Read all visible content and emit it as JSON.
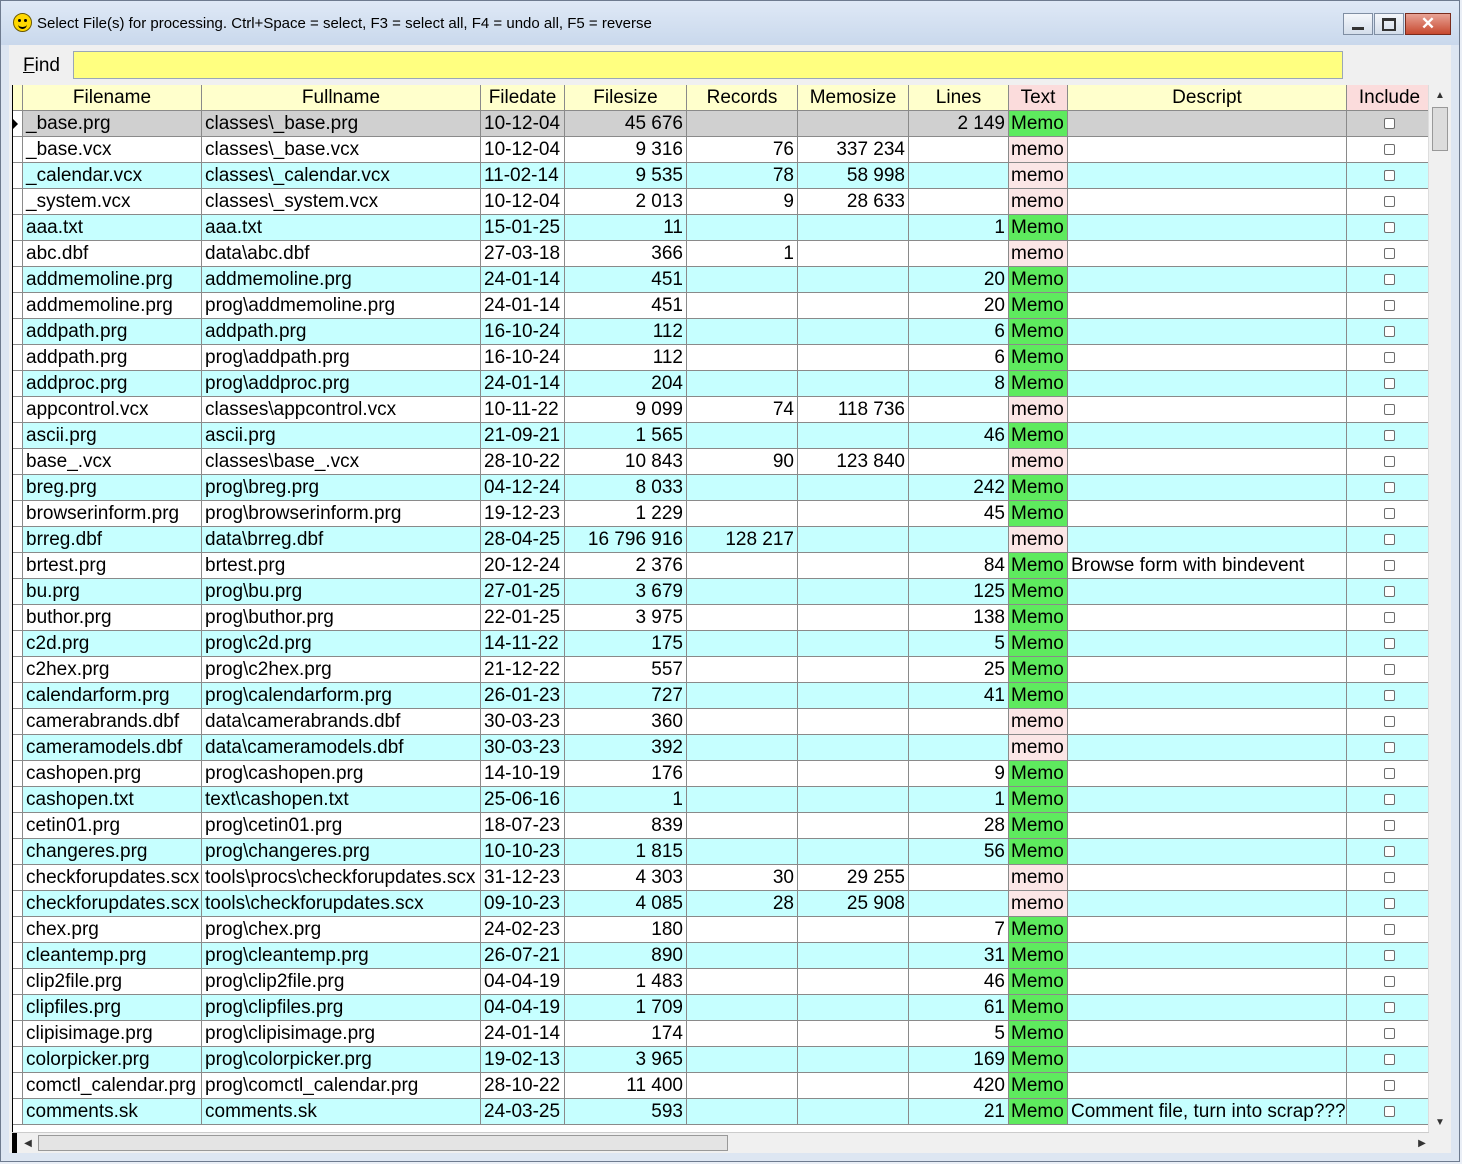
{
  "window": {
    "title": "Select File(s) for processing. Ctrl+Space = select, F3 = select all, F4 = undo all, F5 = reverse"
  },
  "find": {
    "label_prefix": "F",
    "label_rest": "ind",
    "value": ""
  },
  "grid": {
    "columns": [
      "Filename",
      "Fullname",
      "Filedate",
      "Filesize",
      "Records",
      "Memosize",
      "Lines",
      "Text",
      "Descript",
      "Include"
    ],
    "rows": [
      {
        "filename": "_base.prg",
        "fullname": "classes\\_base.prg",
        "filedate": "10-12-04",
        "filesize": "45 676",
        "records": "",
        "memosize": "",
        "lines": "2 149",
        "text": "Memo",
        "descript": "",
        "include": false
      },
      {
        "filename": "_base.vcx",
        "fullname": "classes\\_base.vcx",
        "filedate": "10-12-04",
        "filesize": "9 316",
        "records": "76",
        "memosize": "337 234",
        "lines": "",
        "text": "memo",
        "descript": "",
        "include": false
      },
      {
        "filename": "_calendar.vcx",
        "fullname": "classes\\_calendar.vcx",
        "filedate": "11-02-14",
        "filesize": "9 535",
        "records": "78",
        "memosize": "58 998",
        "lines": "",
        "text": "memo",
        "descript": "",
        "include": false
      },
      {
        "filename": "_system.vcx",
        "fullname": "classes\\_system.vcx",
        "filedate": "10-12-04",
        "filesize": "2 013",
        "records": "9",
        "memosize": "28 633",
        "lines": "",
        "text": "memo",
        "descript": "",
        "include": false
      },
      {
        "filename": "aaa.txt",
        "fullname": "aaa.txt",
        "filedate": "15-01-25",
        "filesize": "11",
        "records": "",
        "memosize": "",
        "lines": "1",
        "text": "Memo",
        "descript": "",
        "include": false
      },
      {
        "filename": "abc.dbf",
        "fullname": "data\\abc.dbf",
        "filedate": "27-03-18",
        "filesize": "366",
        "records": "1",
        "memosize": "",
        "lines": "",
        "text": "memo",
        "descript": "",
        "include": false
      },
      {
        "filename": "addmemoline.prg",
        "fullname": "addmemoline.prg",
        "filedate": "24-01-14",
        "filesize": "451",
        "records": "",
        "memosize": "",
        "lines": "20",
        "text": "Memo",
        "descript": "",
        "include": false
      },
      {
        "filename": "addmemoline.prg",
        "fullname": "prog\\addmemoline.prg",
        "filedate": "24-01-14",
        "filesize": "451",
        "records": "",
        "memosize": "",
        "lines": "20",
        "text": "Memo",
        "descript": "",
        "include": false
      },
      {
        "filename": "addpath.prg",
        "fullname": "addpath.prg",
        "filedate": "16-10-24",
        "filesize": "112",
        "records": "",
        "memosize": "",
        "lines": "6",
        "text": "Memo",
        "descript": "",
        "include": false
      },
      {
        "filename": "addpath.prg",
        "fullname": "prog\\addpath.prg",
        "filedate": "16-10-24",
        "filesize": "112",
        "records": "",
        "memosize": "",
        "lines": "6",
        "text": "Memo",
        "descript": "",
        "include": false
      },
      {
        "filename": "addproc.prg",
        "fullname": "prog\\addproc.prg",
        "filedate": "24-01-14",
        "filesize": "204",
        "records": "",
        "memosize": "",
        "lines": "8",
        "text": "Memo",
        "descript": "",
        "include": false
      },
      {
        "filename": "appcontrol.vcx",
        "fullname": "classes\\appcontrol.vcx",
        "filedate": "10-11-22",
        "filesize": "9 099",
        "records": "74",
        "memosize": "118 736",
        "lines": "",
        "text": "memo",
        "descript": "",
        "include": false
      },
      {
        "filename": "ascii.prg",
        "fullname": "ascii.prg",
        "filedate": "21-09-21",
        "filesize": "1 565",
        "records": "",
        "memosize": "",
        "lines": "46",
        "text": "Memo",
        "descript": "",
        "include": false
      },
      {
        "filename": "base_.vcx",
        "fullname": "classes\\base_.vcx",
        "filedate": "28-10-22",
        "filesize": "10 843",
        "records": "90",
        "memosize": "123 840",
        "lines": "",
        "text": "memo",
        "descript": "",
        "include": false
      },
      {
        "filename": "breg.prg",
        "fullname": "prog\\breg.prg",
        "filedate": "04-12-24",
        "filesize": "8 033",
        "records": "",
        "memosize": "",
        "lines": "242",
        "text": "Memo",
        "descript": "",
        "include": false
      },
      {
        "filename": "browserinform.prg",
        "fullname": "prog\\browserinform.prg",
        "filedate": "19-12-23",
        "filesize": "1 229",
        "records": "",
        "memosize": "",
        "lines": "45",
        "text": "Memo",
        "descript": "",
        "include": false
      },
      {
        "filename": "brreg.dbf",
        "fullname": "data\\brreg.dbf",
        "filedate": "28-04-25",
        "filesize": "16 796 916",
        "records": "128 217",
        "memosize": "",
        "lines": "",
        "text": "memo",
        "descript": "",
        "include": false
      },
      {
        "filename": "brtest.prg",
        "fullname": "brtest.prg",
        "filedate": "20-12-24",
        "filesize": "2 376",
        "records": "",
        "memosize": "",
        "lines": "84",
        "text": "Memo",
        "descript": "Browse form with bindevent",
        "include": false
      },
      {
        "filename": "bu.prg",
        "fullname": "prog\\bu.prg",
        "filedate": "27-01-25",
        "filesize": "3 679",
        "records": "",
        "memosize": "",
        "lines": "125",
        "text": "Memo",
        "descript": "",
        "include": false
      },
      {
        "filename": "buthor.prg",
        "fullname": "prog\\buthor.prg",
        "filedate": "22-01-25",
        "filesize": "3 975",
        "records": "",
        "memosize": "",
        "lines": "138",
        "text": "Memo",
        "descript": "",
        "include": false
      },
      {
        "filename": "c2d.prg",
        "fullname": "prog\\c2d.prg",
        "filedate": "14-11-22",
        "filesize": "175",
        "records": "",
        "memosize": "",
        "lines": "5",
        "text": "Memo",
        "descript": "",
        "include": false
      },
      {
        "filename": "c2hex.prg",
        "fullname": "prog\\c2hex.prg",
        "filedate": "21-12-22",
        "filesize": "557",
        "records": "",
        "memosize": "",
        "lines": "25",
        "text": "Memo",
        "descript": "",
        "include": false
      },
      {
        "filename": "calendarform.prg",
        "fullname": "prog\\calendarform.prg",
        "filedate": "26-01-23",
        "filesize": "727",
        "records": "",
        "memosize": "",
        "lines": "41",
        "text": "Memo",
        "descript": "",
        "include": false
      },
      {
        "filename": "camerabrands.dbf",
        "fullname": "data\\camerabrands.dbf",
        "filedate": "30-03-23",
        "filesize": "360",
        "records": "",
        "memosize": "",
        "lines": "",
        "text": "memo",
        "descript": "",
        "include": false
      },
      {
        "filename": "cameramodels.dbf",
        "fullname": "data\\cameramodels.dbf",
        "filedate": "30-03-23",
        "filesize": "392",
        "records": "",
        "memosize": "",
        "lines": "",
        "text": "memo",
        "descript": "",
        "include": false
      },
      {
        "filename": "cashopen.prg",
        "fullname": "prog\\cashopen.prg",
        "filedate": "14-10-19",
        "filesize": "176",
        "records": "",
        "memosize": "",
        "lines": "9",
        "text": "Memo",
        "descript": "",
        "include": false
      },
      {
        "filename": "cashopen.txt",
        "fullname": "text\\cashopen.txt",
        "filedate": "25-06-16",
        "filesize": "1",
        "records": "",
        "memosize": "",
        "lines": "1",
        "text": "Memo",
        "descript": "",
        "include": false
      },
      {
        "filename": "cetin01.prg",
        "fullname": "prog\\cetin01.prg",
        "filedate": "18-07-23",
        "filesize": "839",
        "records": "",
        "memosize": "",
        "lines": "28",
        "text": "Memo",
        "descript": "",
        "include": false
      },
      {
        "filename": "changeres.prg",
        "fullname": "prog\\changeres.prg",
        "filedate": "10-10-23",
        "filesize": "1 815",
        "records": "",
        "memosize": "",
        "lines": "56",
        "text": "Memo",
        "descript": "",
        "include": false
      },
      {
        "filename": "checkforupdates.scx",
        "fullname": "tools\\procs\\checkforupdates.scx",
        "filedate": "31-12-23",
        "filesize": "4 303",
        "records": "30",
        "memosize": "29 255",
        "lines": "",
        "text": "memo",
        "descript": "",
        "include": false
      },
      {
        "filename": "checkforupdates.scx",
        "fullname": "tools\\checkforupdates.scx",
        "filedate": "09-10-23",
        "filesize": "4 085",
        "records": "28",
        "memosize": "25 908",
        "lines": "",
        "text": "memo",
        "descript": "",
        "include": false
      },
      {
        "filename": "chex.prg",
        "fullname": "prog\\chex.prg",
        "filedate": "24-02-23",
        "filesize": "180",
        "records": "",
        "memosize": "",
        "lines": "7",
        "text": "Memo",
        "descript": "",
        "include": false
      },
      {
        "filename": "cleantemp.prg",
        "fullname": "prog\\cleantemp.prg",
        "filedate": "26-07-21",
        "filesize": "890",
        "records": "",
        "memosize": "",
        "lines": "31",
        "text": "Memo",
        "descript": "",
        "include": false
      },
      {
        "filename": "clip2file.prg",
        "fullname": "prog\\clip2file.prg",
        "filedate": "04-04-19",
        "filesize": "1 483",
        "records": "",
        "memosize": "",
        "lines": "46",
        "text": "Memo",
        "descript": "",
        "include": false
      },
      {
        "filename": "clipfiles.prg",
        "fullname": "prog\\clipfiles.prg",
        "filedate": "04-04-19",
        "filesize": "1 709",
        "records": "",
        "memosize": "",
        "lines": "61",
        "text": "Memo",
        "descript": "",
        "include": false
      },
      {
        "filename": "clipisimage.prg",
        "fullname": "prog\\clipisimage.prg",
        "filedate": "24-01-14",
        "filesize": "174",
        "records": "",
        "memosize": "",
        "lines": "5",
        "text": "Memo",
        "descript": "",
        "include": false
      },
      {
        "filename": "colorpicker.prg",
        "fullname": "prog\\colorpicker.prg",
        "filedate": "19-02-13",
        "filesize": "3 965",
        "records": "",
        "memosize": "",
        "lines": "169",
        "text": "Memo",
        "descript": "",
        "include": false
      },
      {
        "filename": "comctl_calendar.prg",
        "fullname": "prog\\comctl_calendar.prg",
        "filedate": "28-10-22",
        "filesize": "11 400",
        "records": "",
        "memosize": "",
        "lines": "420",
        "text": "Memo",
        "descript": "",
        "include": false
      },
      {
        "filename": "comments.sk",
        "fullname": "comments.sk",
        "filedate": "24-03-25",
        "filesize": "593",
        "records": "",
        "memosize": "",
        "lines": "21",
        "text": "Memo",
        "descript": "Comment file, turn into scrap???",
        "include": false
      }
    ]
  },
  "colors": {
    "header_bg": "#ffffcc",
    "row_alt_bg": "#c6ffff",
    "memo_filled_bg": "#5eea5e",
    "memo_empty_bg": "#fbe6e6",
    "find_bg": "#ffff80",
    "selected_row_bg": "#d0d0d0"
  },
  "icons": {
    "app": "smiley-icon",
    "minimize": "minimize-icon",
    "maximize": "maximize-icon",
    "close": "close-icon"
  }
}
